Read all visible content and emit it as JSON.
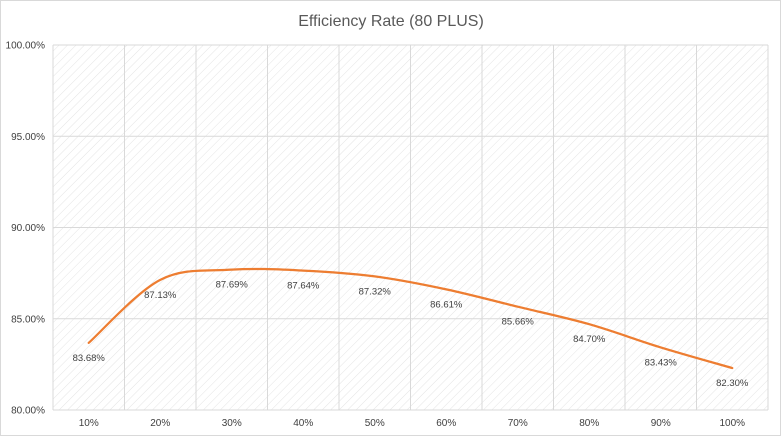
{
  "chart_data": {
    "type": "line",
    "title": "Efficiency Rate (80 PLUS)",
    "xlabel": "",
    "ylabel": "",
    "categories": [
      "10%",
      "20%",
      "30%",
      "40%",
      "50%",
      "60%",
      "70%",
      "80%",
      "90%",
      "100%"
    ],
    "series": [
      {
        "values": [
          83.68,
          87.13,
          87.69,
          87.64,
          87.32,
          86.61,
          85.66,
          84.7,
          83.43,
          82.3
        ],
        "data_labels": [
          "83.68%",
          "87.13%",
          "87.69%",
          "87.64%",
          "87.32%",
          "86.61%",
          "85.66%",
          "84.70%",
          "83.43%",
          "82.30%"
        ],
        "color": "#ed7d31",
        "smoothed": true
      }
    ],
    "ylim": [
      80,
      100
    ],
    "yticks": [
      80,
      85,
      90,
      95,
      100
    ],
    "ytick_labels": [
      "80.00%",
      "85.00%",
      "90.00%",
      "95.00%",
      "100.00%"
    ],
    "grid": true,
    "plot_background": "diagonal-hatch",
    "legend": "none",
    "colors": {
      "grid": "#d9d9d9",
      "hatch": "#e4e4e4",
      "title": "#595959",
      "labels": "#404040"
    }
  }
}
